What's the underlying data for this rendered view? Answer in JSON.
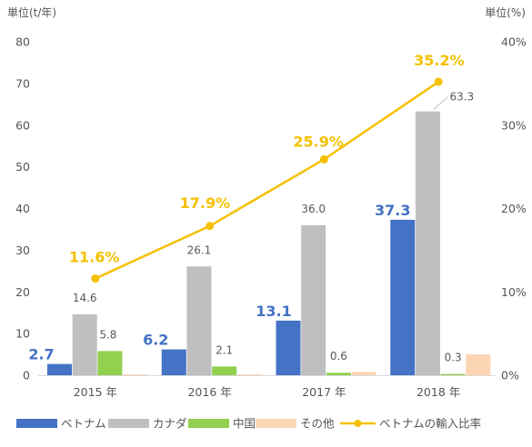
{
  "chart_data": {
    "type": "bar",
    "left_unit_label": "単位(t/年)",
    "right_unit_label": "単位(%)",
    "categories": [
      "2015 年",
      "2016 年",
      "2017 年",
      "2018 年"
    ],
    "series": [
      {
        "name": "ベトナム",
        "color": "#4472c4",
        "values": [
          2.7,
          6.2,
          13.1,
          37.3
        ],
        "labels": [
          "2.7",
          "6.2",
          "13.1",
          "37.3"
        ]
      },
      {
        "name": "カナダ",
        "color": "#bfbfbf",
        "values": [
          14.6,
          26.1,
          36.0,
          63.3
        ],
        "labels": [
          "14.6",
          "26.1",
          "36.0",
          "63.3"
        ]
      },
      {
        "name": "中国",
        "color": "#92d050",
        "values": [
          5.8,
          2.1,
          0.6,
          0.3
        ],
        "labels": [
          "5.8",
          "2.1",
          "0.6",
          "0.3"
        ]
      },
      {
        "name": "その他",
        "color": "#fcd5b5",
        "values": [
          0.2,
          0.2,
          0.8,
          5.0
        ],
        "labels": []
      }
    ],
    "line_series": {
      "name": "ベトナムの輸入比率",
      "color": "#f5c000",
      "values": [
        11.6,
        17.9,
        25.9,
        35.2
      ],
      "labels": [
        "11.6%",
        "17.9%",
        "25.9%",
        "35.2%"
      ],
      "axis": "right"
    },
    "y_left": {
      "min": 0,
      "max": 80,
      "ticks": [
        "0",
        "10",
        "20",
        "30",
        "40",
        "50",
        "60",
        "70",
        "80"
      ]
    },
    "y_right": {
      "min": 0,
      "max": 40,
      "ticks": [
        "0%",
        "10%",
        "20%",
        "30%",
        "40%"
      ]
    },
    "grid": false,
    "legend_position": "bottom"
  }
}
